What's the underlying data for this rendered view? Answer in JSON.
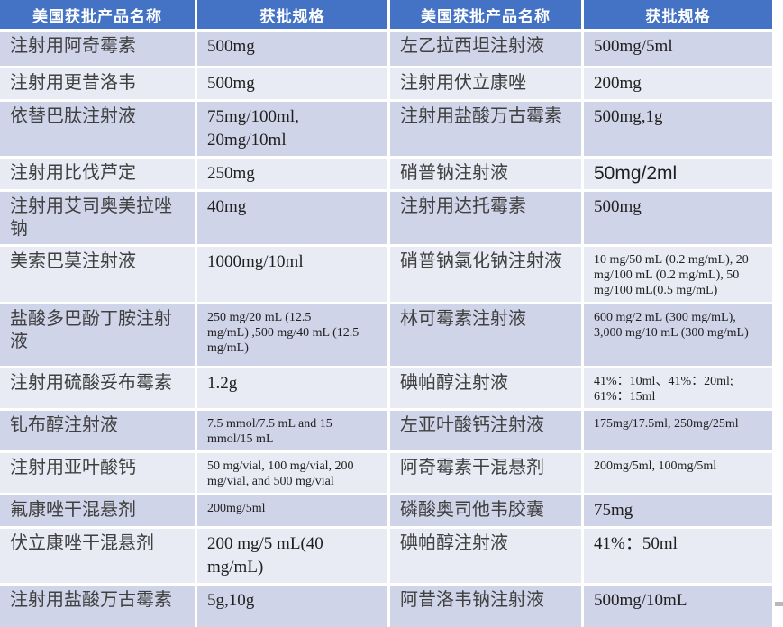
{
  "colors": {
    "header_bg": "#4472c4",
    "row_dark": "#cfd4e8",
    "row_light": "#e8eaf4",
    "name_color": "#404040",
    "spec_color": "#1f1f1f",
    "header_text": "#ffffff"
  },
  "table": {
    "header": [
      "美国获批产品名称",
      "获批规格",
      "美国获批产品名称",
      "获批规格"
    ],
    "rows": [
      {
        "cells": [
          {
            "text": "注射用阿奇霉素",
            "type": "name"
          },
          {
            "text": "500mg",
            "type": "spec"
          },
          {
            "text": "左乙拉西坦注射液",
            "type": "name"
          },
          {
            "text": "500mg/5ml",
            "type": "spec"
          }
        ]
      },
      {
        "cells": [
          {
            "text": "注射用更昔洛韦",
            "type": "name"
          },
          {
            "text": "500mg",
            "type": "spec"
          },
          {
            "text": "注射用伏立康唑",
            "type": "name"
          },
          {
            "text": "200mg",
            "type": "spec"
          }
        ]
      },
      {
        "cells": [
          {
            "text": "依替巴肽注射液",
            "type": "name"
          },
          {
            "text": "75mg/100ml,\n20mg/10ml",
            "type": "spec"
          },
          {
            "text": "注射用盐酸万古霉素",
            "type": "name"
          },
          {
            "text": "500mg,1g",
            "type": "spec"
          }
        ]
      },
      {
        "cells": [
          {
            "text": "注射用比伐芦定",
            "type": "name"
          },
          {
            "text": "250mg",
            "type": "spec"
          },
          {
            "text": "硝普钠注射液",
            "type": "name"
          },
          {
            "text": "50mg/2ml",
            "type": "spec",
            "variant": "sans"
          }
        ]
      },
      {
        "cells": [
          {
            "text": "注射用艾司奥美拉唑钠",
            "type": "name"
          },
          {
            "text": "40mg",
            "type": "spec"
          },
          {
            "text": "注射用达托霉素",
            "type": "name"
          },
          {
            "text": "500mg",
            "type": "spec"
          }
        ]
      },
      {
        "cells": [
          {
            "text": "美索巴莫注射液",
            "type": "name"
          },
          {
            "text": "1000mg/10ml",
            "type": "spec"
          },
          {
            "text": "硝普钠氯化钠注射液",
            "type": "name"
          },
          {
            "text": "10 mg/50 mL (0.2 mg/mL), 20\nmg/100 mL (0.2 mg/mL), 50\nmg/100 mL(0.5 mg/mL)",
            "type": "spec",
            "variant": "small"
          }
        ]
      },
      {
        "cells": [
          {
            "text": "盐酸多巴酚丁胺注射液",
            "type": "name"
          },
          {
            "text": "250 mg/20 mL (12.5\nmg/mL) ,500 mg/40 mL (12.5\nmg/mL)",
            "type": "spec",
            "variant": "small"
          },
          {
            "text": "林可霉素注射液",
            "type": "name"
          },
          {
            "text": "600 mg/2 mL (300 mg/mL),\n3,000 mg/10 mL (300 mg/mL)",
            "type": "spec",
            "variant": "small"
          }
        ]
      },
      {
        "cells": [
          {
            "text": "注射用硫酸妥布霉素",
            "type": "name"
          },
          {
            "text": "1.2g",
            "type": "spec"
          },
          {
            "text": "碘帕醇注射液",
            "type": "name"
          },
          {
            "text": "41%：10ml、41%：20ml;\n61%：15ml",
            "type": "spec",
            "variant": "small"
          }
        ]
      },
      {
        "cells": [
          {
            "text": "钆布醇注射液",
            "type": "name"
          },
          {
            "text": "7.5 mmol/7.5 mL and 15\nmmol/15 mL",
            "type": "spec",
            "variant": "small"
          },
          {
            "text": "左亚叶酸钙注射液",
            "type": "name"
          },
          {
            "text": "175mg/17.5ml, 250mg/25ml",
            "type": "spec",
            "variant": "small"
          }
        ]
      },
      {
        "cells": [
          {
            "text": "注射用亚叶酸钙",
            "type": "name"
          },
          {
            "text": "50 mg/vial, 100 mg/vial, 200\nmg/vial, and 500 mg/vial",
            "type": "spec",
            "variant": "small"
          },
          {
            "text": "阿奇霉素干混悬剂",
            "type": "name"
          },
          {
            "text": "200mg/5ml, 100mg/5ml",
            "type": "spec",
            "variant": "small"
          }
        ]
      },
      {
        "cells": [
          {
            "text": "氟康唑干混悬剂",
            "type": "name"
          },
          {
            "text": "200mg/5ml",
            "type": "spec",
            "variant": "small"
          },
          {
            "text": "磷酸奥司他韦胶囊",
            "type": "name"
          },
          {
            "text": "75mg",
            "type": "spec"
          }
        ]
      },
      {
        "cells": [
          {
            "text": "伏立康唑干混悬剂",
            "type": "name"
          },
          {
            "text": "200 mg/5 mL(40\nmg/mL)",
            "type": "spec"
          },
          {
            "text": "碘帕醇注射液",
            "type": "name"
          },
          {
            "text": "41%：50ml",
            "type": "spec"
          }
        ]
      },
      {
        "cells": [
          {
            "text": "注射用盐酸万古霉素",
            "type": "name"
          },
          {
            "text": "5g,10g",
            "type": "spec"
          },
          {
            "text": "阿昔洛韦钠注射液",
            "type": "name"
          },
          {
            "text": "500mg/10mL",
            "type": "spec"
          }
        ]
      }
    ]
  }
}
